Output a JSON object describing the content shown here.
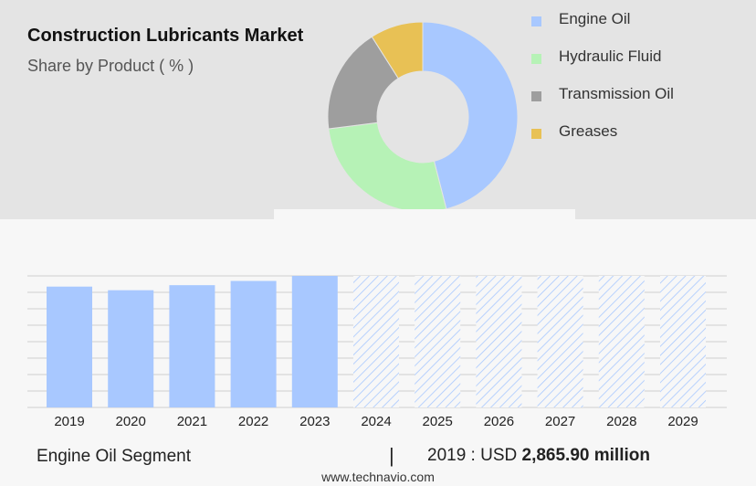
{
  "chart_data": [
    {
      "type": "pie",
      "style": "donut",
      "title": "Construction Lubricants Market",
      "subtitle": "Share by Product ( % )",
      "legend_position": "right",
      "slices": [
        {
          "label": "Engine Oil",
          "value": 46,
          "color": "#a8c8ff"
        },
        {
          "label": "Hydraulic Fluid",
          "value": 27,
          "color": "#b6f2b6"
        },
        {
          "label": "Transmission Oil",
          "value": 18,
          "color": "#9e9e9e"
        },
        {
          "label": "Greases",
          "value": 9,
          "color": "#e8c155"
        }
      ]
    },
    {
      "type": "bar",
      "categories": [
        "2019",
        "2020",
        "2021",
        "2022",
        "2023",
        "2024",
        "2025",
        "2026",
        "2027",
        "2028",
        "2029"
      ],
      "values": [
        2865.9,
        2780,
        2900,
        3000,
        3120,
        null,
        null,
        null,
        null,
        null,
        null
      ],
      "forecast_categories": [
        "2024",
        "2025",
        "2026",
        "2027",
        "2028",
        "2029"
      ],
      "forecast_style": "hatched",
      "bar_color": "#a8c8ff",
      "ylim": [
        0,
        3120
      ],
      "grid": true
    }
  ],
  "footer": {
    "segment_label": "Engine Oil Segment",
    "divider": "|",
    "stat_prefix": "2019 : USD ",
    "stat_value": "2,865.90 million"
  },
  "source": "www.technavio.com"
}
